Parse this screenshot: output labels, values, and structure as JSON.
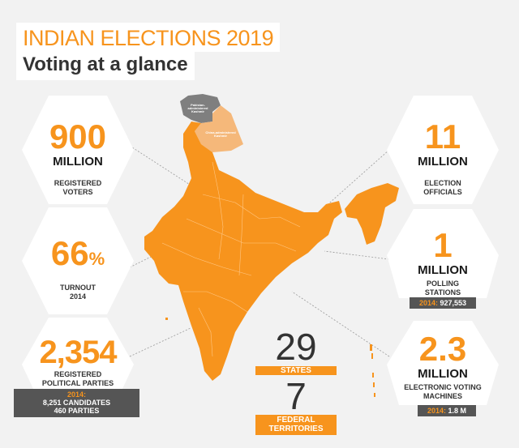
{
  "header": {
    "title": "INDIAN ELECTIONS 2019",
    "subtitle": "Voting at a glance"
  },
  "stats": {
    "voters": {
      "value": "900",
      "unit": "MILLION",
      "label_1": "REGISTERED",
      "label_2": "VOTERS"
    },
    "turnout": {
      "value": "66",
      "suffix": "%",
      "label_1": "TURNOUT",
      "label_2": "2014"
    },
    "parties": {
      "value": "2,354",
      "label_1": "REGISTERED",
      "label_2": "POLITICAL PARTIES",
      "note_year": "2014:",
      "note_candidates": "8,251 CANDIDATES",
      "note_parties": "460 PARTIES"
    },
    "officials": {
      "value": "11",
      "unit": "MILLION",
      "label_1": "ELECTION",
      "label_2": "OFFICIALS"
    },
    "stations": {
      "value": "1",
      "unit": "MILLION",
      "label_1": "POLLING",
      "label_2": "STATIONS",
      "note_year": "2014:",
      "note_value": "927,553"
    },
    "machines": {
      "value": "2.3",
      "unit": "MILLION",
      "label_1": "ELECTRONIC VOTING",
      "label_2": "MACHINES",
      "note_year": "2014:",
      "note_value": "1.8 M"
    },
    "states": {
      "value": "29",
      "label": "STATES"
    },
    "territories": {
      "value": "7",
      "label_1": "FEDERAL",
      "label_2": "TERRITORIES"
    }
  },
  "map": {
    "pak_label_1": "Pakistan-administered",
    "pak_label_2": "Kashmir",
    "ch_label_1": "China-administered",
    "ch_label_2": "Kashmir"
  },
  "colors": {
    "accent": "#f7941d",
    "dark": "#333333",
    "map_grey": "#7f7f7f",
    "map_light": "#f5b87a"
  }
}
